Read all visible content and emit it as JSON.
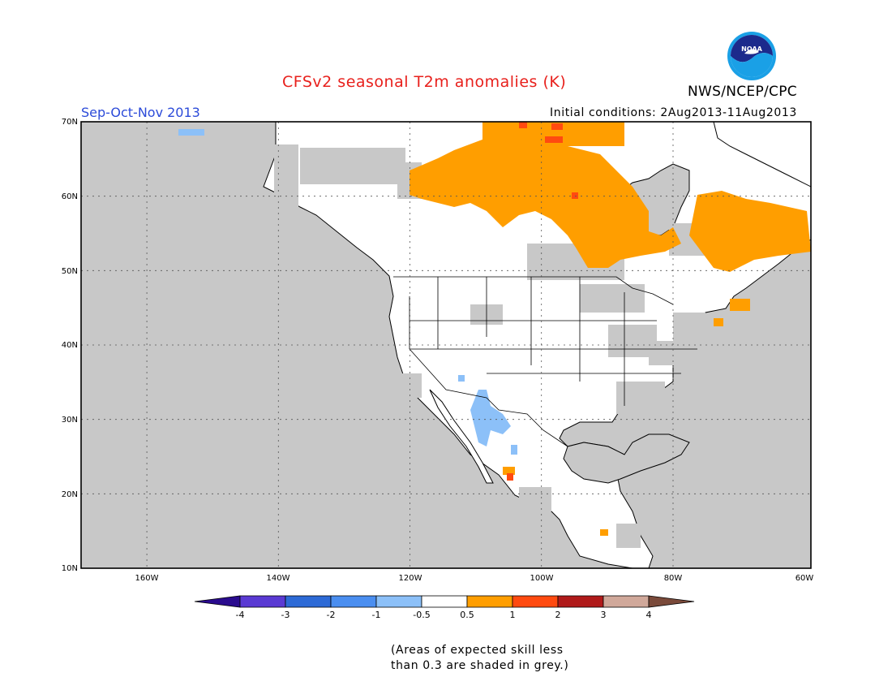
{
  "header": {
    "title": "CFSv2 seasonal T2m anomalies (K)",
    "agency": "NWS/NCEP/CPC",
    "season": "Sep-Oct-Nov 2013",
    "initial_conditions": "Initial conditions: 2Aug2013-11Aug2013",
    "logo_text": "NOAA"
  },
  "map": {
    "lat_labels": [
      "70N",
      "60N",
      "50N",
      "40N",
      "30N",
      "20N",
      "10N"
    ],
    "lon_labels": [
      "160W",
      "140W",
      "120W",
      "100W",
      "80W",
      "60W"
    ],
    "lat_range": [
      10,
      70
    ],
    "lon_range": [
      -171,
      -60
    ],
    "grid": "dotted",
    "skill_mask_color": "#c8c8c8",
    "land_color": "#ffffff"
  },
  "colorbar": {
    "tick_labels": [
      "-4",
      "-3",
      "-2",
      "-1",
      "-0.5",
      "0.5",
      "1",
      "2",
      "3",
      "4"
    ],
    "colors": [
      "#2a0b8e",
      "#5a3ad3",
      "#2d6ad6",
      "#4a8ef0",
      "#8cc0f8",
      "#ffffff",
      "#ff9e00",
      "#ff4a10",
      "#b01a1a",
      "#d0a89a",
      "#7a4a3a"
    ]
  },
  "footnote": {
    "line1": "(Areas of expected skill less",
    "line2": "than 0.3 are shaded in grey.)"
  }
}
